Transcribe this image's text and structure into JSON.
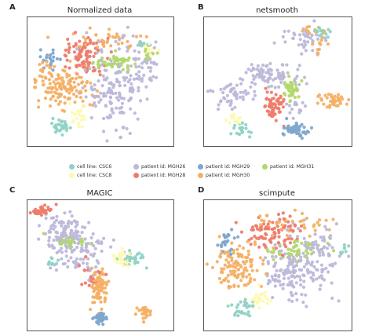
{
  "figure": {
    "panels": [
      {
        "letter": "A",
        "title": "Normalized data"
      },
      {
        "letter": "B",
        "title": "netsmooth"
      },
      {
        "letter": "C",
        "title": "MAGIC"
      },
      {
        "letter": "D",
        "title": "scimpute"
      }
    ]
  },
  "legend": {
    "items": [
      {
        "label": "cell line: CSC6",
        "color": "#8fd3c6"
      },
      {
        "label": "cell line: CSC8",
        "color": "#fdfab0"
      },
      {
        "label": "patient id: MGH26",
        "color": "#bcb8d9"
      },
      {
        "label": "patient id: MGH28",
        "color": "#ee7c6b"
      },
      {
        "label": "patient id: MGH29",
        "color": "#7ea7cc"
      },
      {
        "label": "patient id: MGH30",
        "color": "#f4b066"
      },
      {
        "label": "patient id: MGH31",
        "color": "#b2d86a"
      }
    ]
  },
  "chart_data": [
    {
      "type": "scatter",
      "title": "Normalized data",
      "xlim": [
        0,
        100
      ],
      "ylim": [
        0,
        100
      ],
      "series": [
        {
          "name": "cell line: CSC6",
          "clusters": [
            {
              "cx": 22,
              "cy": 84,
              "sx": 4,
              "sy": 3,
              "n": 30
            },
            {
              "cx": 80,
              "cy": 22,
              "sx": 3,
              "sy": 2,
              "n": 8
            }
          ]
        },
        {
          "name": "cell line: CSC8",
          "clusters": [
            {
              "cx": 35,
              "cy": 78,
              "sx": 3,
              "sy": 4,
              "n": 20
            },
            {
              "cx": 83,
              "cy": 25,
              "sx": 3,
              "sy": 3,
              "n": 10
            }
          ]
        },
        {
          "name": "patient id: MGH26",
          "clusters": [
            {
              "cx": 60,
              "cy": 55,
              "sx": 10,
              "sy": 15,
              "n": 160
            },
            {
              "cx": 80,
              "cy": 35,
              "sx": 6,
              "sy": 10,
              "n": 40
            }
          ]
        },
        {
          "name": "patient id: MGH28",
          "clusters": [
            {
              "cx": 40,
              "cy": 30,
              "sx": 8,
              "sy": 7,
              "n": 90
            }
          ]
        },
        {
          "name": "patient id: MGH29",
          "clusters": [
            {
              "cx": 16,
              "cy": 32,
              "sx": 3,
              "sy": 5,
              "n": 20
            }
          ]
        },
        {
          "name": "patient id: MGH30",
          "clusters": [
            {
              "cx": 25,
              "cy": 55,
              "sx": 9,
              "sy": 8,
              "n": 120
            },
            {
              "cx": 55,
              "cy": 18,
              "sx": 14,
              "sy": 4,
              "n": 40
            },
            {
              "cx": 12,
              "cy": 45,
              "sx": 4,
              "sy": 10,
              "n": 20
            }
          ]
        },
        {
          "name": "patient id: MGH31",
          "clusters": [
            {
              "cx": 60,
              "cy": 35,
              "sx": 10,
              "sy": 3,
              "n": 50
            },
            {
              "cx": 84,
              "cy": 27,
              "sx": 3,
              "sy": 3,
              "n": 10
            }
          ]
        }
      ]
    },
    {
      "type": "scatter",
      "title": "netsmooth",
      "xlim": [
        0,
        100
      ],
      "ylim": [
        0,
        100
      ],
      "series": [
        {
          "name": "cell line: CSC6",
          "clusters": [
            {
              "cx": 25,
              "cy": 88,
              "sx": 3,
              "sy": 3,
              "n": 20
            },
            {
              "cx": 80,
              "cy": 12,
              "sx": 3,
              "sy": 2,
              "n": 15
            }
          ]
        },
        {
          "name": "cell line: CSC8",
          "clusters": [
            {
              "cx": 22,
              "cy": 80,
              "sx": 3,
              "sy": 2,
              "n": 15
            }
          ]
        },
        {
          "name": "patient id: MGH26",
          "clusters": [
            {
              "cx": 20,
              "cy": 60,
              "sx": 6,
              "sy": 5,
              "n": 50
            },
            {
              "cx": 45,
              "cy": 45,
              "sx": 10,
              "sy": 5,
              "n": 80
            },
            {
              "cx": 68,
              "cy": 18,
              "sx": 8,
              "sy": 5,
              "n": 40
            },
            {
              "cx": 62,
              "cy": 70,
              "sx": 4,
              "sy": 5,
              "n": 15
            }
          ]
        },
        {
          "name": "patient id: MGH28",
          "clusters": [
            {
              "cx": 47,
              "cy": 70,
              "sx": 3.5,
              "sy": 6,
              "n": 60
            }
          ]
        },
        {
          "name": "patient id: MGH29",
          "clusters": [
            {
              "cx": 62,
              "cy": 87,
              "sx": 5,
              "sy": 3,
              "n": 45
            }
          ]
        },
        {
          "name": "patient id: MGH30",
          "clusters": [
            {
              "cx": 88,
              "cy": 65,
              "sx": 4,
              "sy": 3,
              "n": 40
            },
            {
              "cx": 73,
              "cy": 10,
              "sx": 4,
              "sy": 2,
              "n": 10
            },
            {
              "cx": 78,
              "cy": 22,
              "sx": 3,
              "sy": 4,
              "n": 12
            }
          ]
        },
        {
          "name": "patient id: MGH31",
          "clusters": [
            {
              "cx": 60,
              "cy": 55,
              "sx": 3,
              "sy": 4,
              "n": 40
            }
          ]
        }
      ]
    },
    {
      "type": "scatter",
      "title": "MAGIC",
      "xlim": [
        0,
        100
      ],
      "ylim": [
        0,
        100
      ],
      "series": [
        {
          "name": "cell line: CSC6",
          "clusters": [
            {
              "cx": 72,
              "cy": 45,
              "sx": 4,
              "sy": 3,
              "n": 30
            },
            {
              "cx": 17,
              "cy": 48,
              "sx": 2,
              "sy": 2,
              "n": 10
            }
          ]
        },
        {
          "name": "cell line: CSC8",
          "clusters": [
            {
              "cx": 65,
              "cy": 45,
              "sx": 4,
              "sy": 3,
              "n": 30
            }
          ]
        },
        {
          "name": "patient id: MGH26",
          "clusters": [
            {
              "cx": 25,
              "cy": 25,
              "sx": 8,
              "sy": 8,
              "n": 100
            },
            {
              "cx": 38,
              "cy": 40,
              "sx": 10,
              "sy": 8,
              "n": 80
            }
          ]
        },
        {
          "name": "patient id: MGH28",
          "clusters": [
            {
              "cx": 10,
              "cy": 8,
              "sx": 3,
              "sy": 2,
              "n": 40
            },
            {
              "cx": 45,
              "cy": 58,
              "sx": 5,
              "sy": 5,
              "n": 20
            }
          ]
        },
        {
          "name": "patient id: MGH29",
          "clusters": [
            {
              "cx": 50,
              "cy": 90,
              "sx": 2,
              "sy": 3,
              "n": 40
            }
          ]
        },
        {
          "name": "patient id: MGH30",
          "clusters": [
            {
              "cx": 49,
              "cy": 65,
              "sx": 3,
              "sy": 7,
              "n": 80
            },
            {
              "cx": 80,
              "cy": 85,
              "sx": 2,
              "sy": 3,
              "n": 30
            }
          ]
        },
        {
          "name": "patient id: MGH31",
          "clusters": [
            {
              "cx": 28,
              "cy": 32,
              "sx": 6,
              "sy": 3,
              "n": 30
            }
          ]
        }
      ]
    },
    {
      "type": "scatter",
      "title": "scimpute",
      "xlim": [
        0,
        100
      ],
      "ylim": [
        0,
        100
      ],
      "series": [
        {
          "name": "cell line: CSC6",
          "clusters": [
            {
              "cx": 27,
              "cy": 83,
              "sx": 4,
              "sy": 4,
              "n": 30
            },
            {
              "cx": 94,
              "cy": 38,
              "sx": 2,
              "sy": 2,
              "n": 8
            }
          ]
        },
        {
          "name": "cell line: CSC8",
          "clusters": [
            {
              "cx": 38,
              "cy": 75,
              "sx": 3,
              "sy": 4,
              "n": 25
            }
          ]
        },
        {
          "name": "patient id: MGH26",
          "clusters": [
            {
              "cx": 62,
              "cy": 55,
              "sx": 10,
              "sy": 12,
              "n": 150
            },
            {
              "cx": 75,
              "cy": 38,
              "sx": 10,
              "sy": 10,
              "n": 60
            }
          ]
        },
        {
          "name": "patient id: MGH28",
          "clusters": [
            {
              "cx": 45,
              "cy": 25,
              "sx": 9,
              "sy": 6,
              "n": 90
            }
          ]
        },
        {
          "name": "patient id: MGH29",
          "clusters": [
            {
              "cx": 16,
              "cy": 32,
              "sx": 3,
              "sy": 5,
              "n": 22
            }
          ]
        },
        {
          "name": "patient id: MGH30",
          "clusters": [
            {
              "cx": 22,
              "cy": 52,
              "sx": 9,
              "sy": 9,
              "n": 120
            },
            {
              "cx": 60,
              "cy": 20,
              "sx": 14,
              "sy": 6,
              "n": 40
            }
          ]
        },
        {
          "name": "patient id: MGH31",
          "clusters": [
            {
              "cx": 63,
              "cy": 38,
              "sx": 9,
              "sy": 4,
              "n": 50
            }
          ]
        }
      ]
    }
  ]
}
